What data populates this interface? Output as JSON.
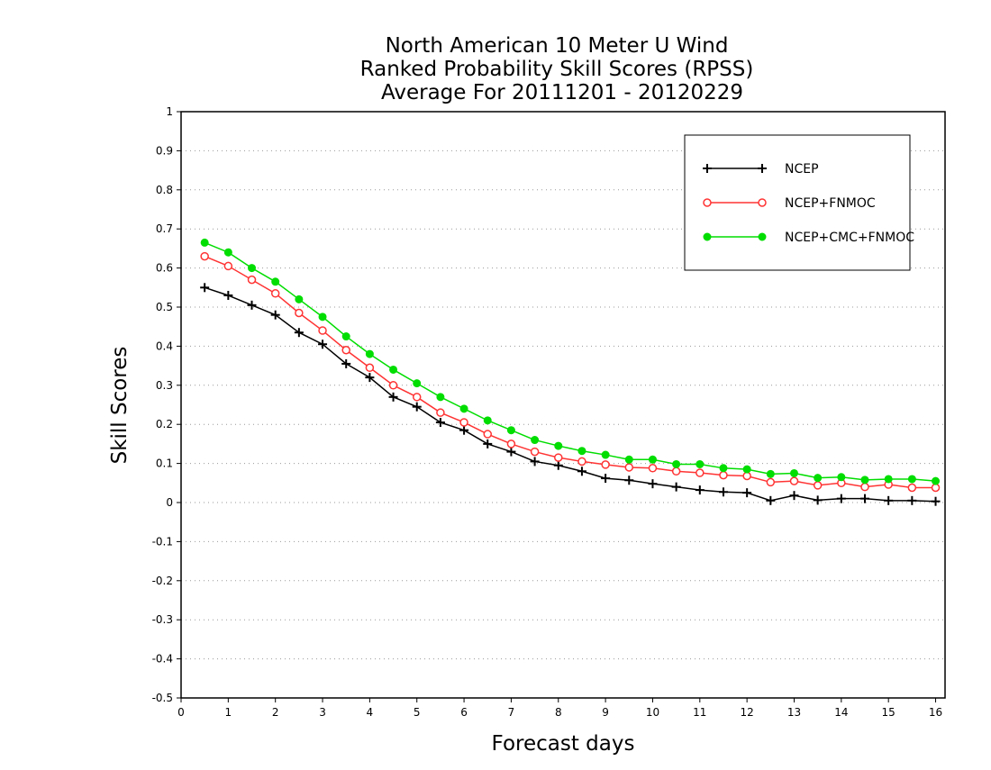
{
  "chart_data": {
    "type": "line",
    "title_lines": [
      "North American 10 Meter U Wind",
      "Ranked Probability Skill Scores (RPSS)",
      "Average For 20111201 - 20120229"
    ],
    "xlabel": "Forecast days",
    "ylabel": "Skill Scores",
    "xlim": [
      0,
      16.2
    ],
    "ylim": [
      -0.5,
      1
    ],
    "xticks": [
      0,
      1,
      2,
      3,
      4,
      5,
      6,
      7,
      8,
      9,
      10,
      11,
      12,
      13,
      14,
      15,
      16
    ],
    "xtick_labels": [
      "0",
      "1",
      "2",
      "3",
      "4",
      "5",
      "6",
      "7",
      "8",
      "9",
      "10",
      "11",
      "12",
      "13",
      "14",
      "15",
      "16"
    ],
    "yticks": [
      -0.5,
      -0.4,
      -0.3,
      -0.2,
      -0.1,
      0,
      0.1,
      0.2,
      0.3,
      0.4,
      0.5,
      0.6,
      0.7,
      0.8,
      0.9,
      1
    ],
    "ytick_labels": [
      "-0.5",
      "-0.4",
      "-0.3",
      "-0.2",
      "-0.1",
      "0",
      "0.1",
      "0.2",
      "0.3",
      "0.4",
      "0.5",
      "0.6",
      "0.7",
      "0.8",
      "0.9",
      "1"
    ],
    "grid": true,
    "legend_position": "top-right",
    "x": [
      0.5,
      1,
      1.5,
      2,
      2.5,
      3,
      3.5,
      4,
      4.5,
      5,
      5.5,
      6,
      6.5,
      7,
      7.5,
      8,
      8.5,
      9,
      9.5,
      10,
      10.5,
      11,
      11.5,
      12,
      12.5,
      13,
      13.5,
      14,
      14.5,
      15,
      15.5,
      16
    ],
    "series": [
      {
        "name": "NCEP",
        "color": "#000000",
        "marker": "plus",
        "values": [
          0.55,
          0.53,
          0.505,
          0.48,
          0.435,
          0.405,
          0.355,
          0.32,
          0.27,
          0.245,
          0.205,
          0.185,
          0.15,
          0.13,
          0.105,
          0.095,
          0.08,
          0.062,
          0.057,
          0.048,
          0.04,
          0.032,
          0.027,
          0.025,
          0.005,
          0.018,
          0.006,
          0.01,
          0.01,
          0.005,
          0.005,
          0.003
        ]
      },
      {
        "name": "NCEP+FNMOC",
        "color": "#ff3333",
        "marker": "open-circle",
        "values": [
          0.63,
          0.605,
          0.57,
          0.535,
          0.485,
          0.44,
          0.39,
          0.345,
          0.3,
          0.27,
          0.23,
          0.205,
          0.175,
          0.15,
          0.13,
          0.115,
          0.105,
          0.097,
          0.09,
          0.088,
          0.08,
          0.076,
          0.07,
          0.068,
          0.052,
          0.055,
          0.044,
          0.05,
          0.04,
          0.046,
          0.038,
          0.038
        ]
      },
      {
        "name": "NCEP+CMC+FNMOC",
        "color": "#00dd00",
        "marker": "filled-circle",
        "values": [
          0.665,
          0.64,
          0.6,
          0.565,
          0.52,
          0.475,
          0.425,
          0.38,
          0.34,
          0.305,
          0.27,
          0.24,
          0.21,
          0.185,
          0.16,
          0.145,
          0.132,
          0.122,
          0.11,
          0.11,
          0.098,
          0.098,
          0.088,
          0.085,
          0.073,
          0.075,
          0.063,
          0.065,
          0.058,
          0.06,
          0.06,
          0.055
        ]
      }
    ]
  }
}
